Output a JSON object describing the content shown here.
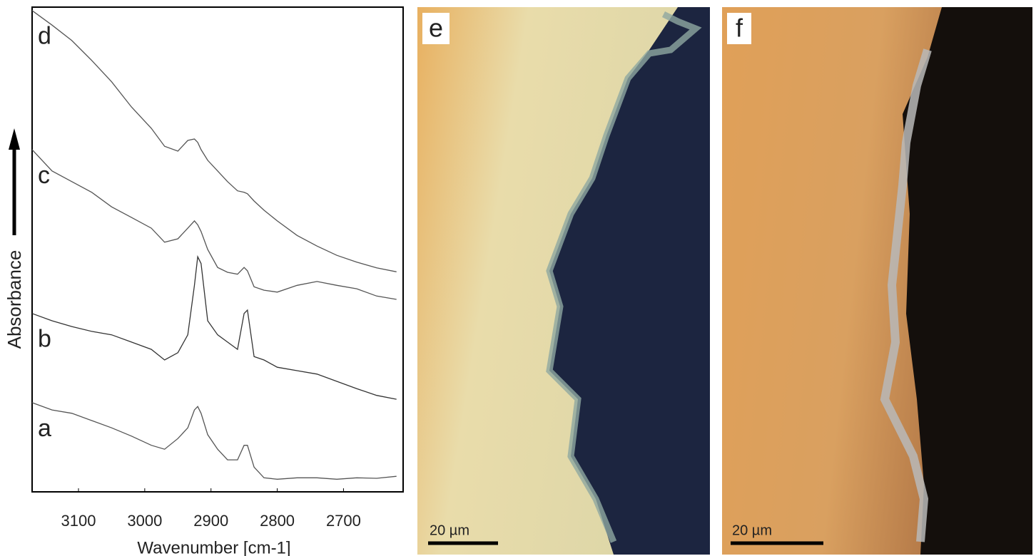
{
  "chart_data": {
    "type": "line",
    "xlabel": "Wavenumber [cm-1]",
    "ylabel": "Absorbance",
    "x": [
      3170,
      3140,
      3110,
      3080,
      3050,
      3020,
      2990,
      2970,
      2950,
      2935,
      2925,
      2920,
      2915,
      2905,
      2890,
      2875,
      2860,
      2850,
      2845,
      2835,
      2820,
      2800,
      2770,
      2740,
      2710,
      2680,
      2650,
      2620
    ],
    "xlim": [
      3170,
      2610
    ],
    "xticks": [
      3100,
      3000,
      2900,
      2800,
      2700
    ],
    "ylim": [
      0,
      100
    ],
    "grid": false,
    "series": [
      {
        "name": "a",
        "color": "#555555",
        "values": [
          18.4,
          16.9,
          16.2,
          14.7,
          13.2,
          11.5,
          9.6,
          8.8,
          11.0,
          13.2,
          16.9,
          17.6,
          16.2,
          11.8,
          8.8,
          6.6,
          6.6,
          9.6,
          9.6,
          5.1,
          2.9,
          2.6,
          2.9,
          2.9,
          2.6,
          2.9,
          2.8,
          3.2
        ]
      },
      {
        "name": "b",
        "color": "#333333",
        "values": [
          36.8,
          35.3,
          34.1,
          33.1,
          32.4,
          30.9,
          29.4,
          27.2,
          28.7,
          32.4,
          42.6,
          48.5,
          47.1,
          35.3,
          32.4,
          30.9,
          29.4,
          36.8,
          37.5,
          27.9,
          27.2,
          25.7,
          25.0,
          24.3,
          22.8,
          21.3,
          19.9,
          19.1
        ]
      },
      {
        "name": "c",
        "color": "#555555",
        "values": [
          70.6,
          66.2,
          64.0,
          61.8,
          58.8,
          56.6,
          54.4,
          51.5,
          52.2,
          54.4,
          55.9,
          55.1,
          53.7,
          50.0,
          46.3,
          45.3,
          44.9,
          46.3,
          45.6,
          42.3,
          41.6,
          41.2,
          42.6,
          43.4,
          42.6,
          41.9,
          40.4,
          39.7
        ]
      },
      {
        "name": "d",
        "color": "#555555",
        "values": [
          99.3,
          96.3,
          93.1,
          89.0,
          84.6,
          79.4,
          75.0,
          71.3,
          70.3,
          72.5,
          72.8,
          72.1,
          70.6,
          68.4,
          66.2,
          64.0,
          62.1,
          61.8,
          61.5,
          60.0,
          58.1,
          55.9,
          52.9,
          50.7,
          48.8,
          47.4,
          46.2,
          45.4
        ]
      }
    ]
  },
  "panels": [
    {
      "label": "e",
      "scale_bar": "20 µm"
    },
    {
      "label": "f",
      "scale_bar": "20 µm"
    }
  ]
}
